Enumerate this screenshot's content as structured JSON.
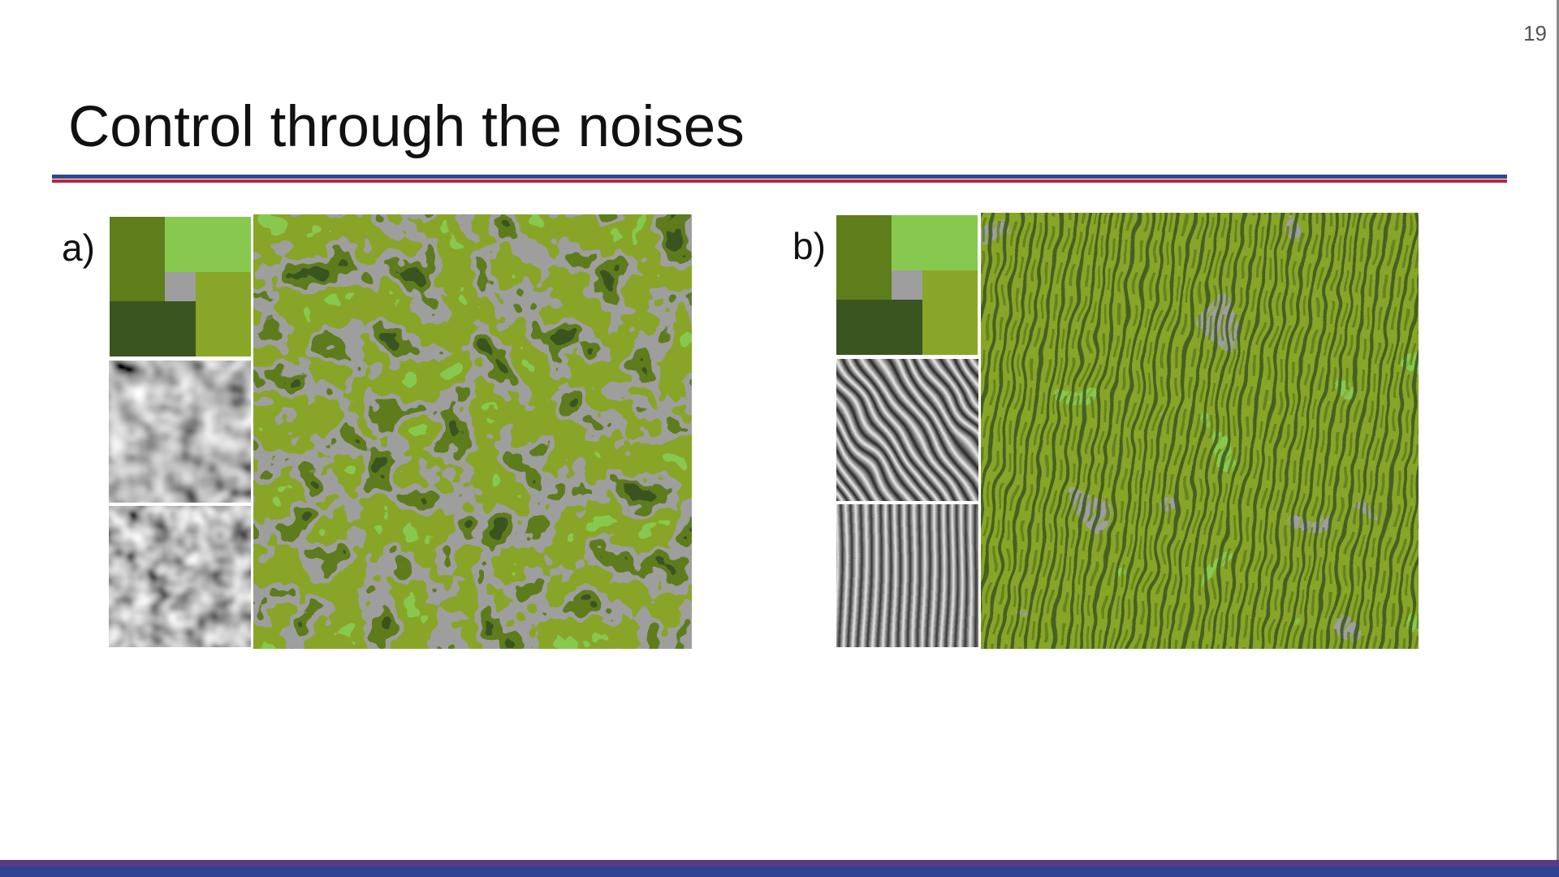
{
  "slide": {
    "page_number": "19",
    "title": "Control through the noises",
    "colors": {
      "rule_blue": "#33478a",
      "rule_red": "#b8283d",
      "bar_purple": "#5a3a86",
      "bar_blue": "#2e4392"
    }
  },
  "panels": [
    {
      "label": "a)",
      "palette": [
        "#5e7e1b",
        "#87c94f",
        "#9e9e9e",
        "#3a5520",
        "#89a629"
      ],
      "noise_style": "isotropic",
      "texture_style": "camouflage"
    },
    {
      "label": "b)",
      "palette": [
        "#5e7e1b",
        "#87c94f",
        "#9e9e9e",
        "#3a5520",
        "#89a629"
      ],
      "noise_style": "oriented",
      "texture_style": "stripes"
    }
  ]
}
